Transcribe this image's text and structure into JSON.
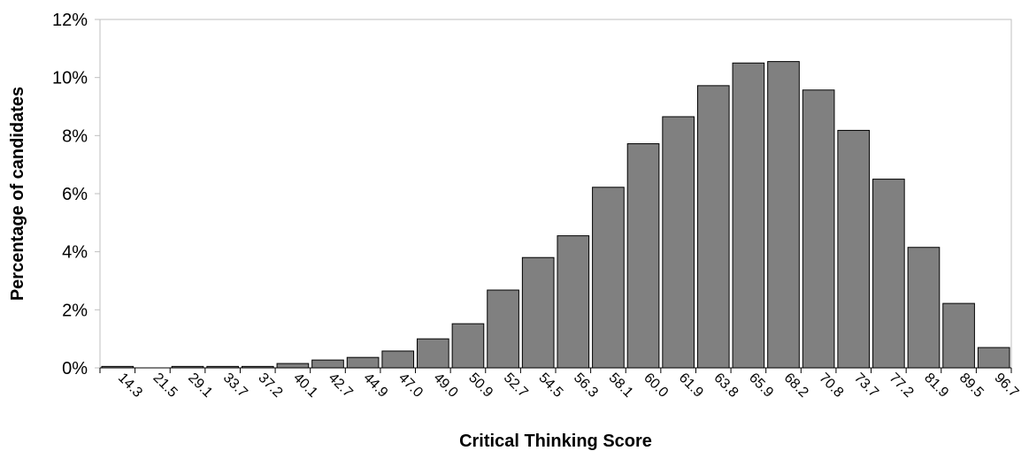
{
  "chart_data": {
    "type": "bar",
    "xlabel": "Critical Thinking Score",
    "ylabel": "Percentage of candidates",
    "categories": [
      "14.3",
      "21.5",
      "29.1",
      "33.7",
      "37.2",
      "40.1",
      "42.7",
      "44.9",
      "47.0",
      "49.0",
      "50.9",
      "52.7",
      "54.5",
      "56.3",
      "58.1",
      "60.0",
      "61.9",
      "63.8",
      "65.9",
      "68.2",
      "70.8",
      "73.7",
      "77.2",
      "81.9",
      "89.5",
      "96.7"
    ],
    "values": [
      0.05,
      0.0,
      0.05,
      0.05,
      0.05,
      0.15,
      0.27,
      0.36,
      0.58,
      1.0,
      1.52,
      2.68,
      3.8,
      4.55,
      6.22,
      7.72,
      8.65,
      9.72,
      10.5,
      10.55,
      9.57,
      8.18,
      6.5,
      4.15,
      2.22,
      0.7
    ],
    "ylim": [
      0,
      12
    ],
    "yticks": [
      "0%",
      "2%",
      "4%",
      "6%",
      "8%",
      "10%",
      "12%"
    ],
    "bar_color": "#808080",
    "bar_edge_color": "#000000",
    "grid": false,
    "legend": "none"
  }
}
